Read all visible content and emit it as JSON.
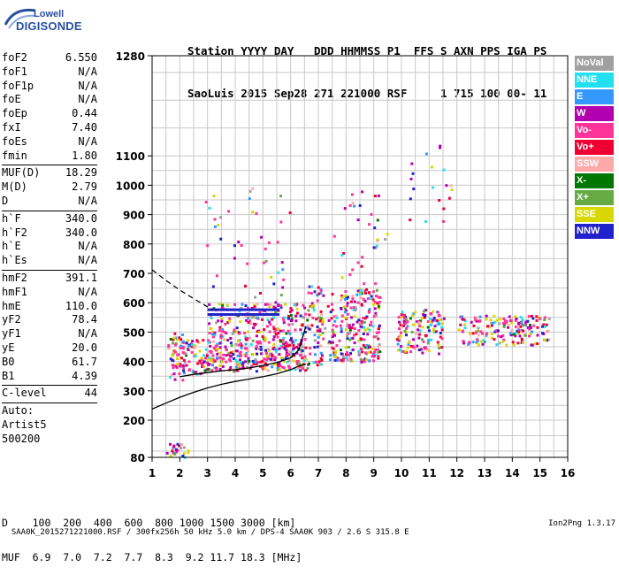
{
  "logo": {
    "line1": "Lowell",
    "line2": "DIGISONDE"
  },
  "header": {
    "line1": "Station YYYY DAY   DDD HHMMSS P1  FFS S AXN PPS IGA PS",
    "line2": "SaoLuis 2015 Sep28 271 221000 RSF     1 715 100 00- 11"
  },
  "params": {
    "group1": [
      {
        "name": "foF2",
        "value": "6.550"
      },
      {
        "name": "foF1",
        "value": "N/A"
      },
      {
        "name": "foF1p",
        "value": "N/A"
      },
      {
        "name": "foE",
        "value": "N/A"
      },
      {
        "name": "foEp",
        "value": "0.44"
      },
      {
        "name": "fxI",
        "value": "7.40"
      },
      {
        "name": "foEs",
        "value": "N/A"
      },
      {
        "name": "fmin",
        "value": "1.80"
      }
    ],
    "group2": [
      {
        "name": "MUF(D)",
        "value": "18.29"
      },
      {
        "name": "M(D)",
        "value": "2.79"
      },
      {
        "name": "D",
        "value": "N/A"
      }
    ],
    "group3": [
      {
        "name": "h`F",
        "value": "340.0"
      },
      {
        "name": "h`F2",
        "value": "340.0"
      },
      {
        "name": "h`E",
        "value": "N/A"
      },
      {
        "name": "h`Es",
        "value": "N/A"
      }
    ],
    "group4": [
      {
        "name": "hmF2",
        "value": "391.1"
      },
      {
        "name": "hmF1",
        "value": "N/A"
      },
      {
        "name": "hmE",
        "value": "110.0"
      },
      {
        "name": "yF2",
        "value": "78.4"
      },
      {
        "name": "yF1",
        "value": "N/A"
      },
      {
        "name": "yE",
        "value": "20.0"
      },
      {
        "name": "B0",
        "value": "61.7"
      },
      {
        "name": "B1",
        "value": "4.39"
      }
    ],
    "clevel": {
      "name": "C-level",
      "value": "44"
    },
    "auto": [
      "Auto:",
      "Artist5",
      "500200"
    ]
  },
  "legend": [
    {
      "label": "NoVal",
      "color": "#a0a0a0"
    },
    {
      "label": "NNE",
      "color": "#22e0f0"
    },
    {
      "label": "E",
      "color": "#3399ff"
    },
    {
      "label": "W",
      "color": "#b000b0"
    },
    {
      "label": "Vo-",
      "color": "#ff3399"
    },
    {
      "label": "Vo+",
      "color": "#ee0033"
    },
    {
      "label": "SSW",
      "color": "#ffaaaa"
    },
    {
      "label": "X-",
      "color": "#007700"
    },
    {
      "label": "X+",
      "color": "#66aa44"
    },
    {
      "label": "SSE",
      "color": "#d8d800"
    },
    {
      "label": "NNW",
      "color": "#2222cc"
    }
  ],
  "muf_table": {
    "line1": "D    100  200  400  600  800 1000 1500 3000 [km]",
    "line2": "MUF  6.9  7.0  7.2  7.7  8.3  9.2 11.7 18.3 [MHz]"
  },
  "footer": {
    "left": "SAA0K_2015271221000.RSF / 300fx256h 50 kHz 5.0 km / DPS-4 SAA0K 903 / 2.6 S 315.8 E",
    "right": "Ion2Png 1.3.17"
  },
  "chart_data": {
    "type": "scatter",
    "title": "",
    "xlabel": "",
    "ylabel": "",
    "xlim": [
      1,
      16
    ],
    "ylim": [
      80,
      1280
    ],
    "x_ticks": [
      1,
      2,
      3,
      4,
      5,
      6,
      7,
      8,
      9,
      10,
      11,
      12,
      13,
      14,
      15,
      16
    ],
    "y_ticks": [
      80,
      200,
      300,
      400,
      500,
      600,
      700,
      800,
      900,
      1000,
      1100,
      1280
    ],
    "grid": true,
    "echo_regions": [
      {
        "x": [
          1.55,
          2.2
        ],
        "y": [
          340,
          500
        ],
        "density": 0.55
      },
      {
        "x": [
          2.2,
          3.0
        ],
        "y": [
          350,
          480
        ],
        "density": 0.5
      },
      {
        "x": [
          3.0,
          6.6
        ],
        "y": [
          370,
          470
        ],
        "density": 0.65
      },
      {
        "x": [
          3.0,
          6.6
        ],
        "y": [
          470,
          600
        ],
        "density": 0.4
      },
      {
        "x": [
          2.9,
          6.0
        ],
        "y": [
          600,
          1000
        ],
        "density": 0.03
      },
      {
        "x": [
          6.6,
          7.2
        ],
        "y": [
          390,
          660
        ],
        "density": 0.35
      },
      {
        "x": [
          7.3,
          9.2
        ],
        "y": [
          400,
          650
        ],
        "density": 0.45
      },
      {
        "x": [
          7.5,
          9.5
        ],
        "y": [
          650,
          1000
        ],
        "density": 0.04
      },
      {
        "x": [
          9.8,
          11.5
        ],
        "y": [
          430,
          580
        ],
        "density": 0.45
      },
      {
        "x": [
          10.1,
          11.8
        ],
        "y": [
          880,
          1120
        ],
        "density": 0.04
      },
      {
        "x": [
          12.0,
          15.3
        ],
        "y": [
          460,
          560
        ],
        "density": 0.45
      },
      {
        "x": [
          1.5,
          2.3
        ],
        "y": [
          80,
          130
        ],
        "density": 0.5
      }
    ],
    "hline_blue": [
      {
        "x": [
          3.0,
          5.6
        ],
        "y": 576
      },
      {
        "x": [
          3.0,
          5.6
        ],
        "y": 560
      }
    ],
    "profile_curve": {
      "x": [
        1.0,
        1.5,
        2.0,
        2.5,
        3.0,
        3.5,
        4.0,
        4.5,
        5.0,
        5.5,
        6.0,
        6.3,
        6.55
      ],
      "y": [
        238,
        258,
        278,
        295,
        310,
        322,
        332,
        340,
        348,
        358,
        372,
        385,
        391.1
      ]
    },
    "trace_curve": {
      "x": [
        2.0,
        2.5,
        3.0,
        3.5,
        4.0,
        4.5,
        5.0,
        5.5,
        6.0,
        6.3,
        6.55
      ],
      "y": [
        348,
        356,
        362,
        368,
        372,
        378,
        386,
        396,
        412,
        440,
        520
      ]
    },
    "dashed_curve": {
      "x": [
        1.0,
        1.5,
        2.0,
        2.5,
        3.0,
        3.2
      ],
      "y": [
        712,
        676,
        643,
        614,
        586,
        575
      ]
    }
  }
}
